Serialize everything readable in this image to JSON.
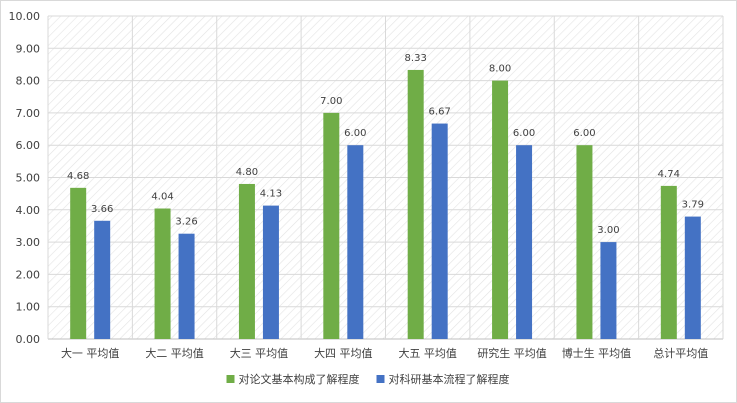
{
  "chart_data": {
    "type": "bar",
    "categories": [
      "大一 平均值",
      "大二 平均值",
      "大三 平均值",
      "大四 平均值",
      "大五 平均值",
      "研究生 平均值",
      "博士生 平均值",
      "总计平均值"
    ],
    "series": [
      {
        "name": "对论文基本构成了解程度",
        "color": "#70AD47",
        "values": [
          4.68,
          4.04,
          4.8,
          7.0,
          8.33,
          8.0,
          6.0,
          4.74
        ],
        "labels": [
          "4.68",
          "4.04",
          "4.80",
          "7.00",
          "8.33",
          "8.00",
          "6.00",
          "4.74"
        ]
      },
      {
        "name": "对科研基本流程了解程度",
        "color": "#4472C4",
        "values": [
          3.66,
          3.26,
          4.13,
          6.0,
          6.67,
          6.0,
          3.0,
          3.79
        ],
        "labels": [
          "3.66",
          "3.26",
          "4.13",
          "6.00",
          "6.67",
          "6.00",
          "3.00",
          "3.79"
        ]
      }
    ],
    "ylim": [
      0,
      10
    ],
    "yticks": [
      "0.00",
      "1.00",
      "2.00",
      "3.00",
      "4.00",
      "5.00",
      "6.00",
      "7.00",
      "8.00",
      "9.00",
      "10.00"
    ],
    "grid": true,
    "legend": "bottom",
    "title": "",
    "xlabel": "",
    "ylabel": ""
  }
}
